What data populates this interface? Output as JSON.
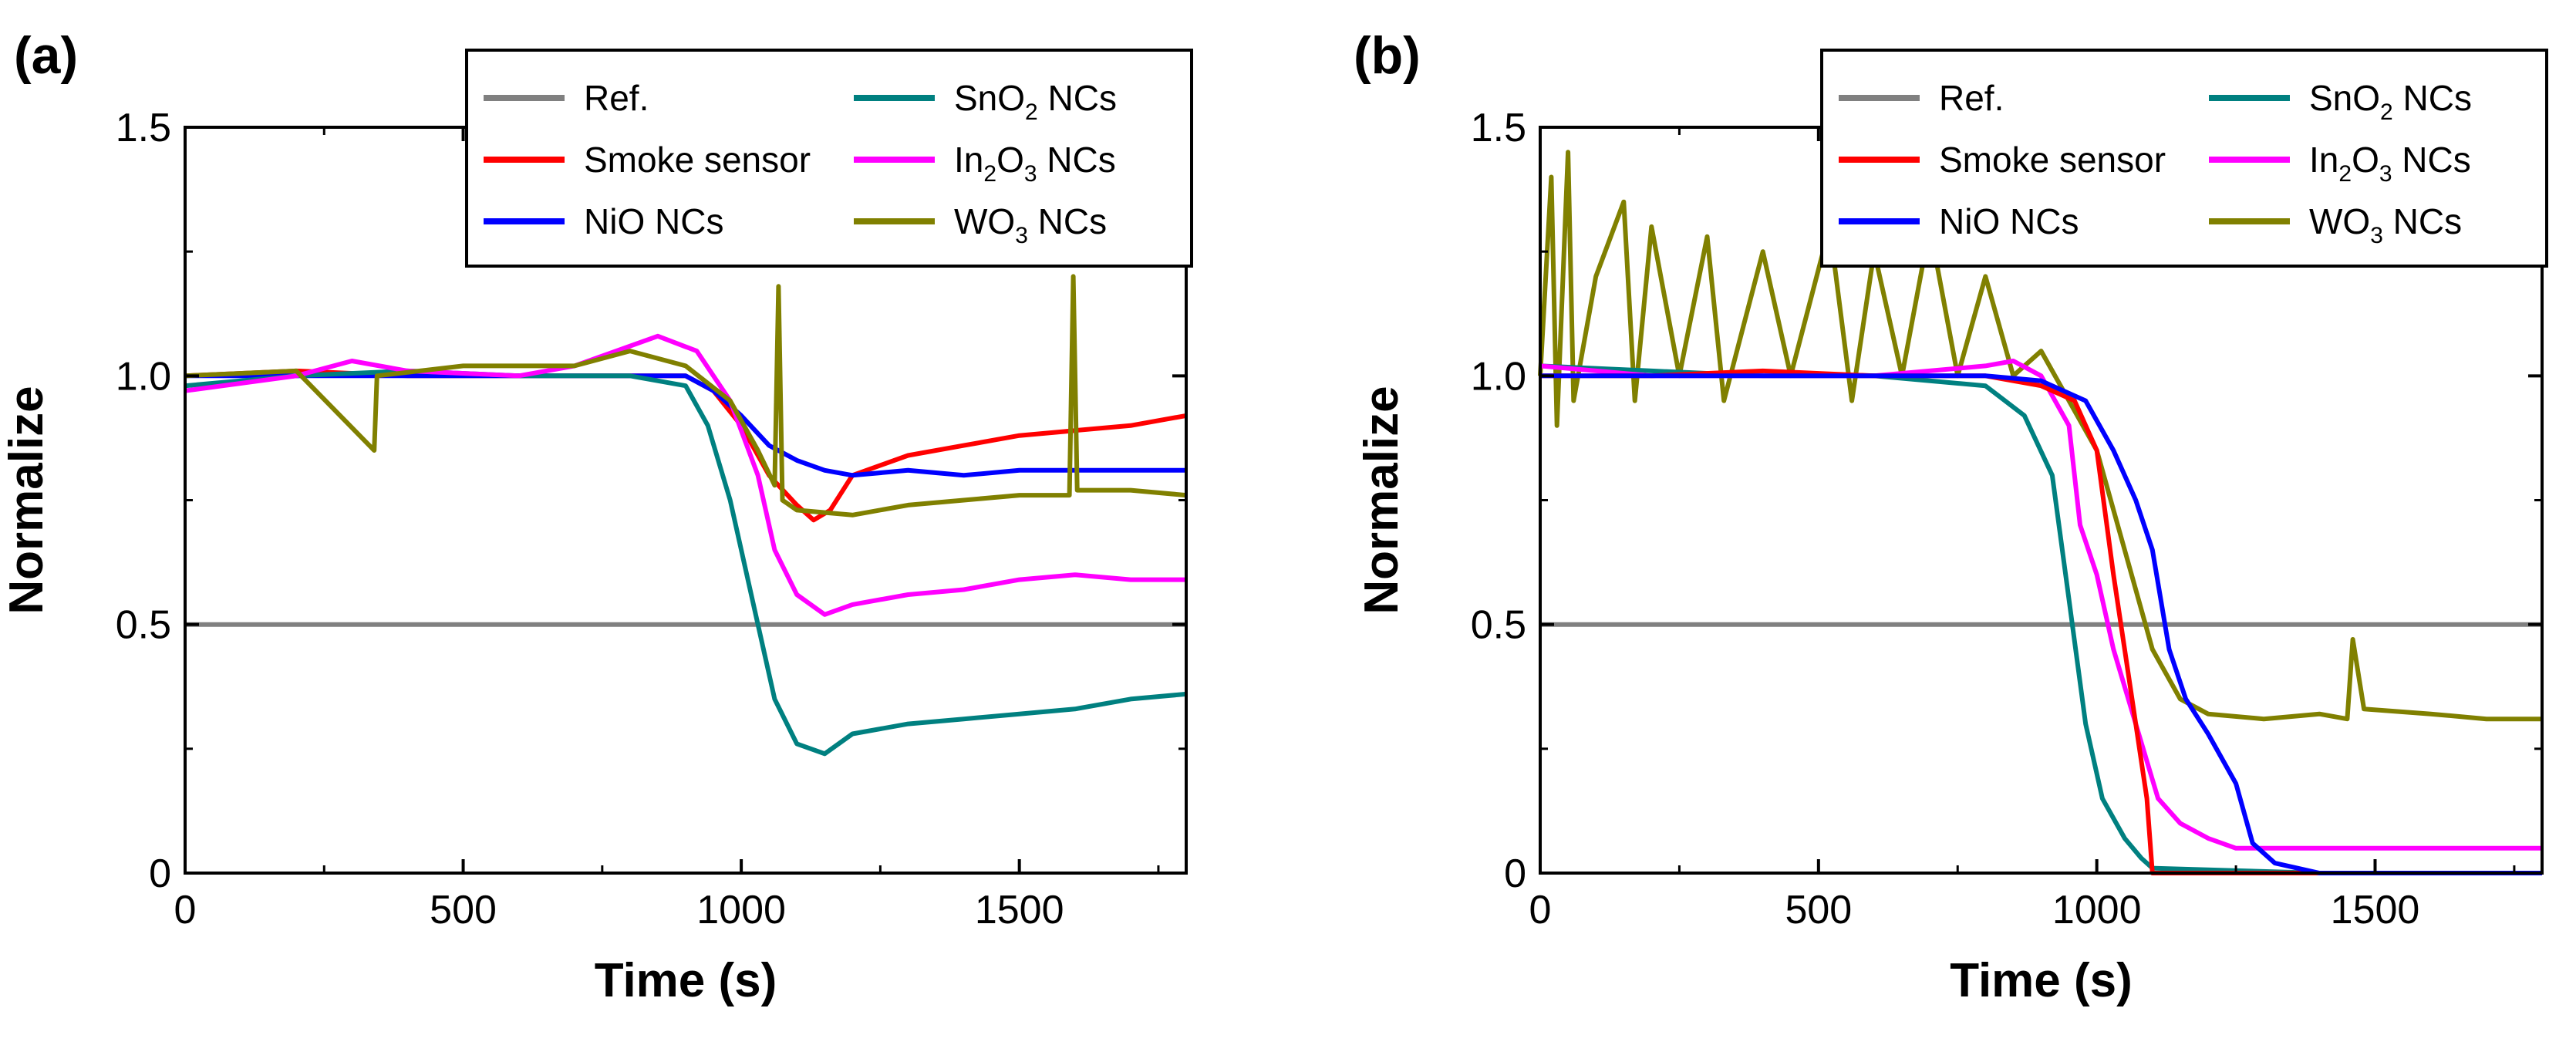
{
  "chart_data": [
    {
      "type": "line",
      "panel_label": "(a)",
      "xlabel": "Time (s)",
      "ylabel": "Normalize",
      "xlim": [
        0,
        1800
      ],
      "ylim": [
        0,
        1.5
      ],
      "xticks": [
        "0",
        "500",
        "1000",
        "1500"
      ],
      "xtick_values": [
        0,
        500,
        1000,
        1500
      ],
      "yticks": [
        "0",
        "0.5",
        "1.0",
        "1.5"
      ],
      "ytick_values": [
        0,
        0.5,
        1.0,
        1.5
      ],
      "grid": false,
      "legend_position": "top-right",
      "series": [
        {
          "name": "Ref.",
          "label_main": "Ref.",
          "label_sub": "",
          "label_tail": "",
          "color": "#808080",
          "points": [
            [
              0,
              0.5
            ],
            [
              1800,
              0.5
            ]
          ]
        },
        {
          "name": "Smoke sensor",
          "label_main": "Smoke sensor",
          "label_sub": "",
          "label_tail": "",
          "color": "#ff0000",
          "points": [
            [
              0,
              1.0
            ],
            [
              200,
              1.01
            ],
            [
              400,
              1.0
            ],
            [
              600,
              1.0
            ],
            [
              800,
              1.0
            ],
            [
              900,
              1.0
            ],
            [
              950,
              0.97
            ],
            [
              1000,
              0.9
            ],
            [
              1050,
              0.8
            ],
            [
              1100,
              0.74
            ],
            [
              1130,
              0.71
            ],
            [
              1160,
              0.73
            ],
            [
              1200,
              0.8
            ],
            [
              1300,
              0.84
            ],
            [
              1400,
              0.86
            ],
            [
              1500,
              0.88
            ],
            [
              1600,
              0.89
            ],
            [
              1700,
              0.9
            ],
            [
              1800,
              0.92
            ]
          ]
        },
        {
          "name": "NiO NCs",
          "label_main": "NiO NCs",
          "label_sub": "",
          "label_tail": "",
          "color": "#0000ff",
          "points": [
            [
              0,
              1.0
            ],
            [
              200,
              1.0
            ],
            [
              400,
              1.0
            ],
            [
              600,
              1.0
            ],
            [
              800,
              1.0
            ],
            [
              900,
              1.0
            ],
            [
              950,
              0.97
            ],
            [
              1000,
              0.92
            ],
            [
              1050,
              0.86
            ],
            [
              1100,
              0.83
            ],
            [
              1150,
              0.81
            ],
            [
              1200,
              0.8
            ],
            [
              1300,
              0.81
            ],
            [
              1400,
              0.8
            ],
            [
              1500,
              0.81
            ],
            [
              1600,
              0.81
            ],
            [
              1700,
              0.81
            ],
            [
              1800,
              0.81
            ]
          ]
        },
        {
          "name": "SnO2 NCs",
          "label_main": "SnO",
          "label_sub": "2",
          "label_tail": " NCs",
          "color": "#008080",
          "points": [
            [
              0,
              0.98
            ],
            [
              200,
              1.0
            ],
            [
              400,
              1.01
            ],
            [
              600,
              1.0
            ],
            [
              800,
              1.0
            ],
            [
              900,
              0.98
            ],
            [
              940,
              0.9
            ],
            [
              980,
              0.75
            ],
            [
              1000,
              0.65
            ],
            [
              1030,
              0.5
            ],
            [
              1060,
              0.35
            ],
            [
              1100,
              0.26
            ],
            [
              1150,
              0.24
            ],
            [
              1200,
              0.28
            ],
            [
              1300,
              0.3
            ],
            [
              1400,
              0.31
            ],
            [
              1500,
              0.32
            ],
            [
              1600,
              0.33
            ],
            [
              1700,
              0.35
            ],
            [
              1800,
              0.36
            ]
          ]
        },
        {
          "name": "In2O3 NCs",
          "label_main": "In",
          "label_sub": "2",
          "label_tail": "O|3| NCs",
          "color": "#ff00ff",
          "points": [
            [
              0,
              0.97
            ],
            [
              200,
              1.0
            ],
            [
              300,
              1.03
            ],
            [
              400,
              1.01
            ],
            [
              600,
              1.0
            ],
            [
              700,
              1.02
            ],
            [
              850,
              1.08
            ],
            [
              920,
              1.05
            ],
            [
              980,
              0.95
            ],
            [
              1030,
              0.8
            ],
            [
              1060,
              0.65
            ],
            [
              1100,
              0.56
            ],
            [
              1150,
              0.52
            ],
            [
              1200,
              0.54
            ],
            [
              1300,
              0.56
            ],
            [
              1400,
              0.57
            ],
            [
              1500,
              0.59
            ],
            [
              1600,
              0.6
            ],
            [
              1700,
              0.59
            ],
            [
              1800,
              0.59
            ]
          ]
        },
        {
          "name": "WO3 NCs",
          "label_main": "WO",
          "label_sub": "3",
          "label_tail": " NCs",
          "color": "#808000",
          "points": [
            [
              0,
              1.0
            ],
            [
              200,
              1.01
            ],
            [
              340,
              0.85
            ],
            [
              345,
              1.0
            ],
            [
              500,
              1.02
            ],
            [
              700,
              1.02
            ],
            [
              800,
              1.05
            ],
            [
              900,
              1.02
            ],
            [
              980,
              0.95
            ],
            [
              1030,
              0.85
            ],
            [
              1060,
              0.78
            ],
            [
              1067,
              1.18
            ],
            [
              1074,
              0.75
            ],
            [
              1100,
              0.73
            ],
            [
              1200,
              0.72
            ],
            [
              1300,
              0.74
            ],
            [
              1400,
              0.75
            ],
            [
              1500,
              0.76
            ],
            [
              1590,
              0.76
            ],
            [
              1597,
              1.2
            ],
            [
              1604,
              0.77
            ],
            [
              1700,
              0.77
            ],
            [
              1800,
              0.76
            ]
          ]
        }
      ]
    },
    {
      "type": "line",
      "panel_label": "(b)",
      "xlabel": "Time (s)",
      "ylabel": "Normalize",
      "xlim": [
        0,
        1800
      ],
      "ylim": [
        0,
        1.5
      ],
      "xticks": [
        "0",
        "500",
        "1000",
        "1500"
      ],
      "xtick_values": [
        0,
        500,
        1000,
        1500
      ],
      "yticks": [
        "0",
        "0.5",
        "1.0",
        "1.5"
      ],
      "ytick_values": [
        0,
        0.5,
        1.0,
        1.5
      ],
      "grid": false,
      "legend_position": "top-right",
      "series": [
        {
          "name": "Ref.",
          "label_main": "Ref.",
          "label_sub": "",
          "label_tail": "",
          "color": "#808080",
          "points": [
            [
              0,
              0.5
            ],
            [
              1800,
              0.5
            ]
          ]
        },
        {
          "name": "WO3 NCs",
          "label_main": "WO",
          "label_sub": "3",
          "label_tail": " NCs",
          "color": "#808000",
          "points": [
            [
              0,
              1.0
            ],
            [
              20,
              1.4
            ],
            [
              30,
              0.9
            ],
            [
              50,
              1.45
            ],
            [
              60,
              0.95
            ],
            [
              100,
              1.2
            ],
            [
              150,
              1.35
            ],
            [
              170,
              0.95
            ],
            [
              200,
              1.3
            ],
            [
              250,
              1.0
            ],
            [
              300,
              1.28
            ],
            [
              330,
              0.95
            ],
            [
              400,
              1.25
            ],
            [
              450,
              1.0
            ],
            [
              520,
              1.3
            ],
            [
              560,
              0.95
            ],
            [
              600,
              1.25
            ],
            [
              650,
              1.0
            ],
            [
              700,
              1.3
            ],
            [
              750,
              1.0
            ],
            [
              800,
              1.2
            ],
            [
              850,
              1.0
            ],
            [
              900,
              1.05
            ],
            [
              950,
              0.95
            ],
            [
              1000,
              0.85
            ],
            [
              1050,
              0.65
            ],
            [
              1100,
              0.45
            ],
            [
              1150,
              0.35
            ],
            [
              1200,
              0.32
            ],
            [
              1300,
              0.31
            ],
            [
              1400,
              0.32
            ],
            [
              1450,
              0.31
            ],
            [
              1460,
              0.47
            ],
            [
              1480,
              0.33
            ],
            [
              1600,
              0.32
            ],
            [
              1700,
              0.31
            ],
            [
              1800,
              0.31
            ]
          ]
        },
        {
          "name": "SnO2 NCs",
          "label_main": "SnO",
          "label_sub": "2",
          "label_tail": " NCs",
          "color": "#008080",
          "points": [
            [
              0,
              1.02
            ],
            [
              200,
              1.01
            ],
            [
              400,
              1.0
            ],
            [
              600,
              1.0
            ],
            [
              800,
              0.98
            ],
            [
              870,
              0.92
            ],
            [
              920,
              0.8
            ],
            [
              950,
              0.55
            ],
            [
              980,
              0.3
            ],
            [
              1010,
              0.15
            ],
            [
              1050,
              0.07
            ],
            [
              1080,
              0.03
            ],
            [
              1100,
              0.01
            ],
            [
              1400,
              0.0
            ],
            [
              1800,
              0.0
            ]
          ]
        },
        {
          "name": "In2O3 NCs",
          "label_main": "In",
          "label_sub": "2",
          "label_tail": "O|3| NCs",
          "color": "#ff00ff",
          "points": [
            [
              0,
              1.02
            ],
            [
              200,
              1.0
            ],
            [
              400,
              1.0
            ],
            [
              600,
              1.0
            ],
            [
              800,
              1.02
            ],
            [
              850,
              1.03
            ],
            [
              900,
              1.0
            ],
            [
              950,
              0.9
            ],
            [
              970,
              0.7
            ],
            [
              1000,
              0.6
            ],
            [
              1030,
              0.45
            ],
            [
              1070,
              0.3
            ],
            [
              1110,
              0.15
            ],
            [
              1150,
              0.1
            ],
            [
              1200,
              0.07
            ],
            [
              1250,
              0.05
            ],
            [
              1400,
              0.05
            ],
            [
              1600,
              0.05
            ],
            [
              1800,
              0.05
            ]
          ]
        },
        {
          "name": "Smoke sensor",
          "label_main": "Smoke sensor",
          "label_sub": "",
          "label_tail": "",
          "color": "#ff0000",
          "points": [
            [
              0,
              1.0
            ],
            [
              200,
              1.0
            ],
            [
              400,
              1.01
            ],
            [
              600,
              1.0
            ],
            [
              800,
              1.0
            ],
            [
              900,
              0.98
            ],
            [
              960,
              0.95
            ],
            [
              1000,
              0.85
            ],
            [
              1030,
              0.6
            ],
            [
              1050,
              0.45
            ],
            [
              1070,
              0.3
            ],
            [
              1090,
              0.15
            ],
            [
              1100,
              0.0
            ],
            [
              1400,
              0.0
            ]
          ]
        },
        {
          "name": "NiO NCs",
          "label_main": "NiO NCs",
          "label_sub": "",
          "label_tail": "",
          "color": "#0000ff",
          "points": [
            [
              0,
              1.0
            ],
            [
              200,
              1.0
            ],
            [
              400,
              1.0
            ],
            [
              600,
              1.0
            ],
            [
              800,
              1.0
            ],
            [
              900,
              0.99
            ],
            [
              980,
              0.95
            ],
            [
              1030,
              0.85
            ],
            [
              1070,
              0.75
            ],
            [
              1100,
              0.65
            ],
            [
              1130,
              0.45
            ],
            [
              1160,
              0.35
            ],
            [
              1200,
              0.28
            ],
            [
              1250,
              0.18
            ],
            [
              1280,
              0.06
            ],
            [
              1320,
              0.02
            ],
            [
              1360,
              0.01
            ],
            [
              1400,
              0.0
            ],
            [
              1800,
              0.0
            ]
          ]
        }
      ]
    }
  ]
}
